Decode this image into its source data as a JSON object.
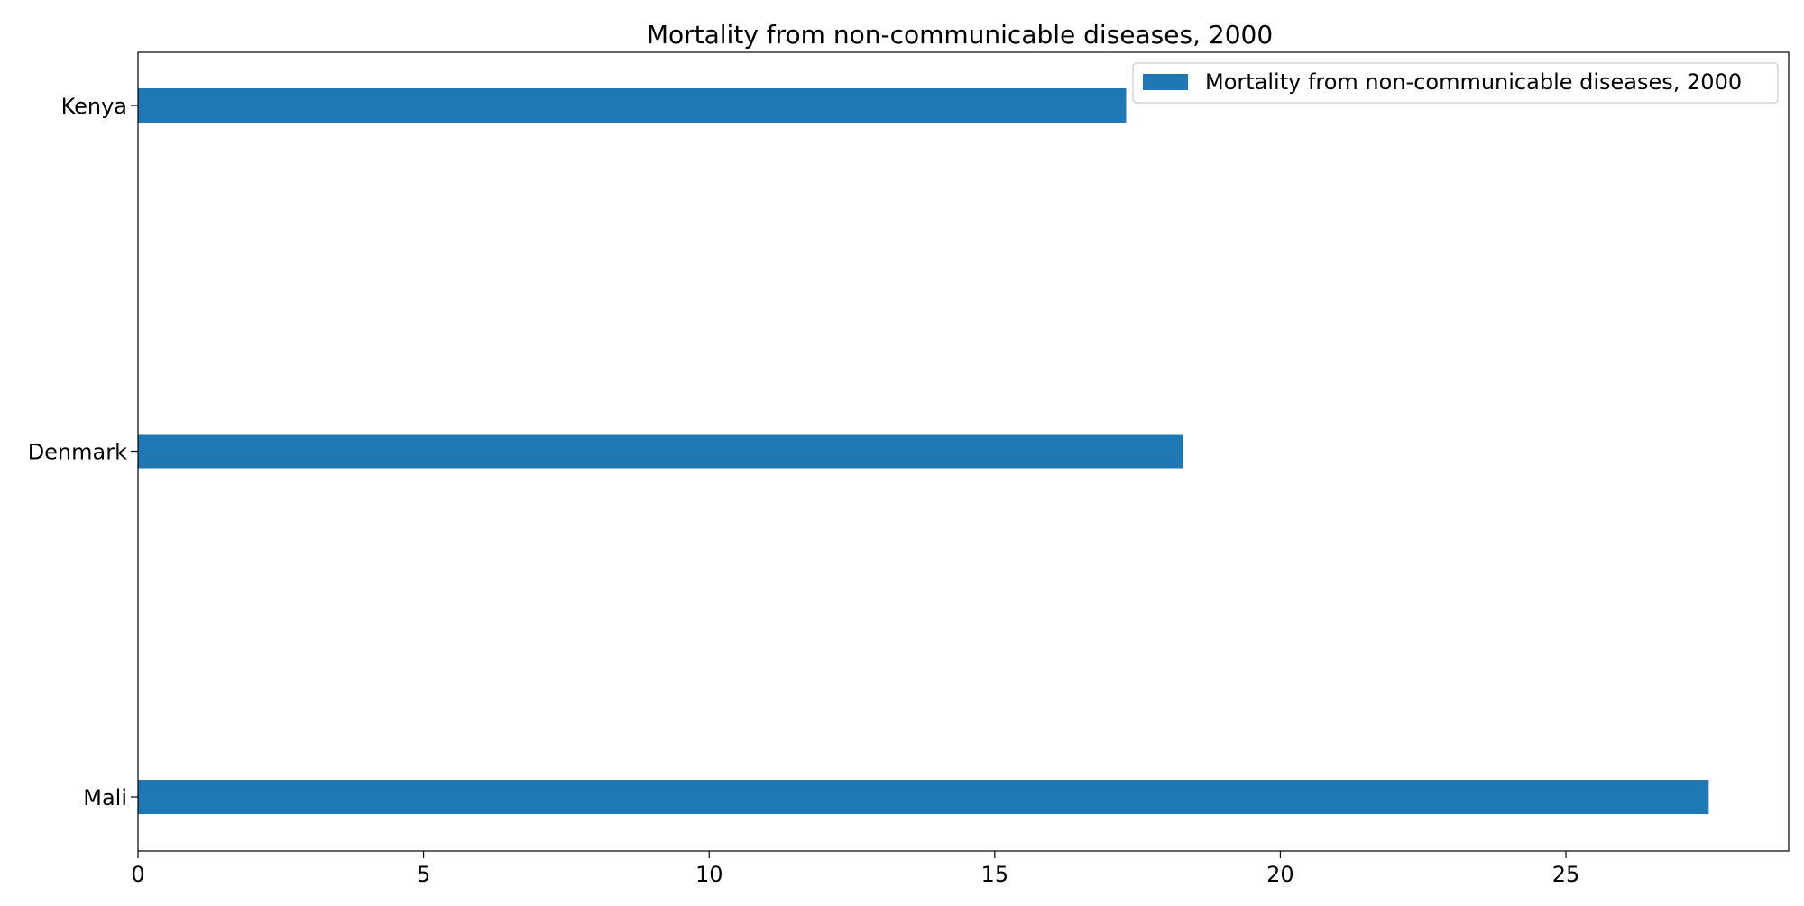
{
  "chart_data": {
    "type": "bar",
    "orientation": "horizontal",
    "title": "Mortality from non-communicable diseases, 2000",
    "xlabel": "",
    "ylabel": "",
    "categories": [
      "Kenya",
      "Denmark",
      "Mali"
    ],
    "series": [
      {
        "name": "Mortality from non-communicable diseases, 2000",
        "values": [
          17.3,
          18.3,
          27.5
        ],
        "color": "#1f77b4"
      }
    ],
    "xlim": [
      0,
      28.9
    ],
    "xticks": [
      0,
      5,
      10,
      15,
      20,
      25
    ],
    "xtick_labels": [
      "0",
      "5",
      "10",
      "15",
      "20",
      "25"
    ],
    "grid": false,
    "legend_position": "top-right"
  }
}
